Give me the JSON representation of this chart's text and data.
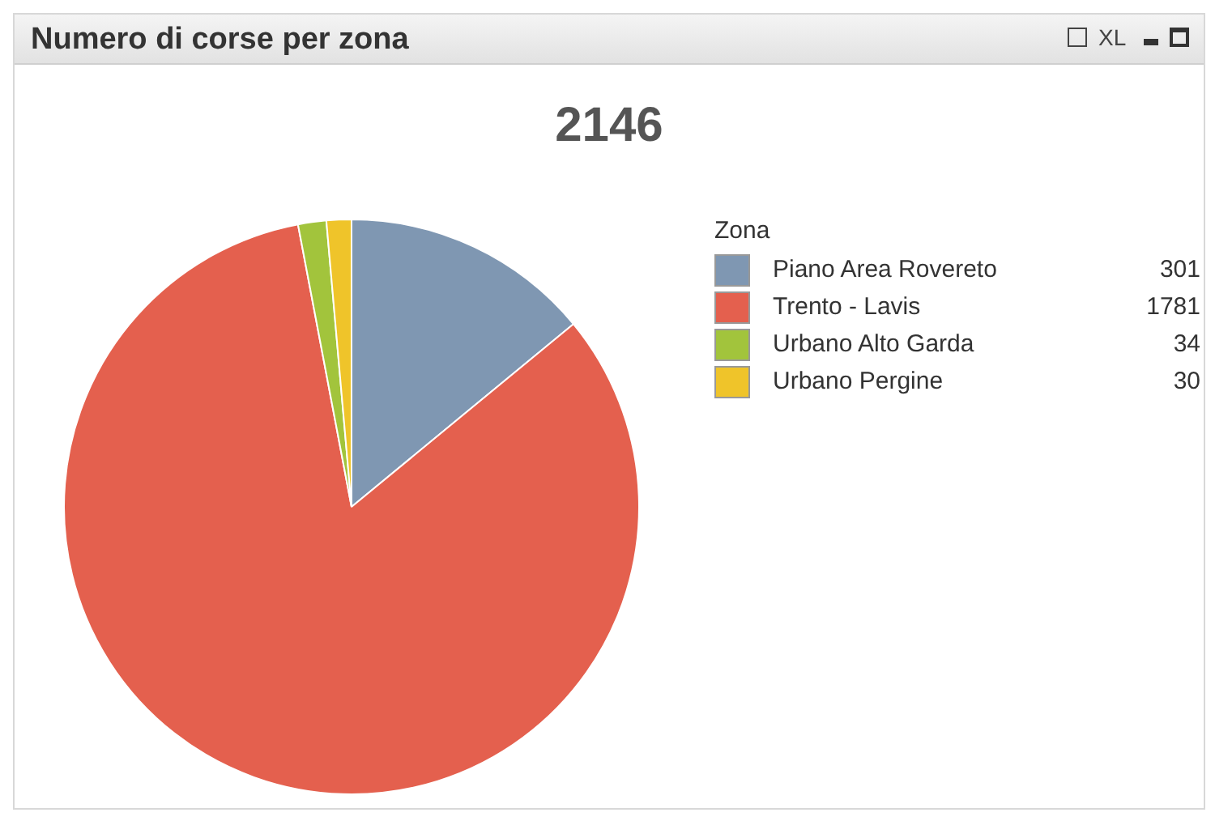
{
  "chart_data": {
    "type": "pie",
    "title": "Numero di corse per zona",
    "subtitle": "2146",
    "legend_title": "Zona",
    "legend": "right",
    "data_labels": true,
    "categories": [
      "Piano Area Rovereto",
      "Trento - Lavis",
      "Urbano Alto Garda",
      "Urbano Pergine"
    ],
    "values": [
      301,
      1781,
      34,
      30
    ],
    "colors": [
      "#7f97b2",
      "#e4604e",
      "#a2c43c",
      "#efc42a"
    ],
    "annotations": [
      "XL"
    ]
  }
}
